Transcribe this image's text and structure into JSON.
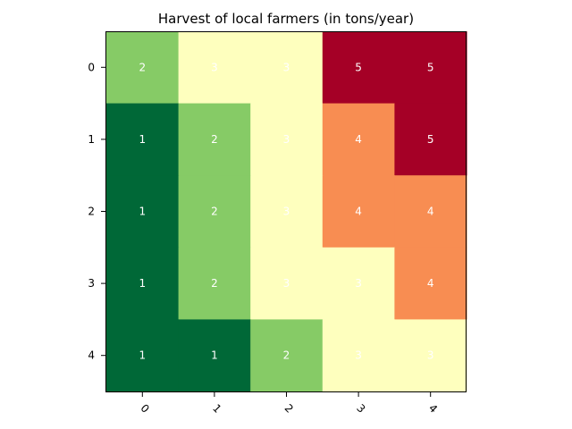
{
  "chart_data": {
    "type": "heatmap",
    "title": "Harvest of local farmers (in tons/year)",
    "xlabel": "",
    "ylabel": "",
    "x_categories": [
      "0",
      "1",
      "2",
      "3",
      "4"
    ],
    "y_categories": [
      "0",
      "1",
      "2",
      "3",
      "4"
    ],
    "values": [
      [
        2,
        3,
        3,
        5,
        5
      ],
      [
        1,
        2,
        3,
        4,
        5
      ],
      [
        1,
        2,
        3,
        4,
        4
      ],
      [
        1,
        2,
        3,
        3,
        4
      ],
      [
        1,
        1,
        2,
        3,
        3
      ]
    ],
    "value_labels": [
      [
        "2",
        "3",
        "3",
        "5",
        "5"
      ],
      [
        "1",
        "2",
        "3",
        "4",
        "5"
      ],
      [
        "1",
        "2",
        "3",
        "4",
        "4"
      ],
      [
        "1",
        "2",
        "3",
        "3",
        "4"
      ],
      [
        "1",
        "1",
        "2",
        "3",
        "3"
      ]
    ],
    "colormap": "RdYlGn_r",
    "value_colors": {
      "1": "#006837",
      "2": "#86cb66",
      "3": "#feffbe",
      "4": "#f88d52",
      "5": "#a50026"
    },
    "label_color": "#ffffff",
    "x_tick_rotation": "45",
    "grid": false
  }
}
